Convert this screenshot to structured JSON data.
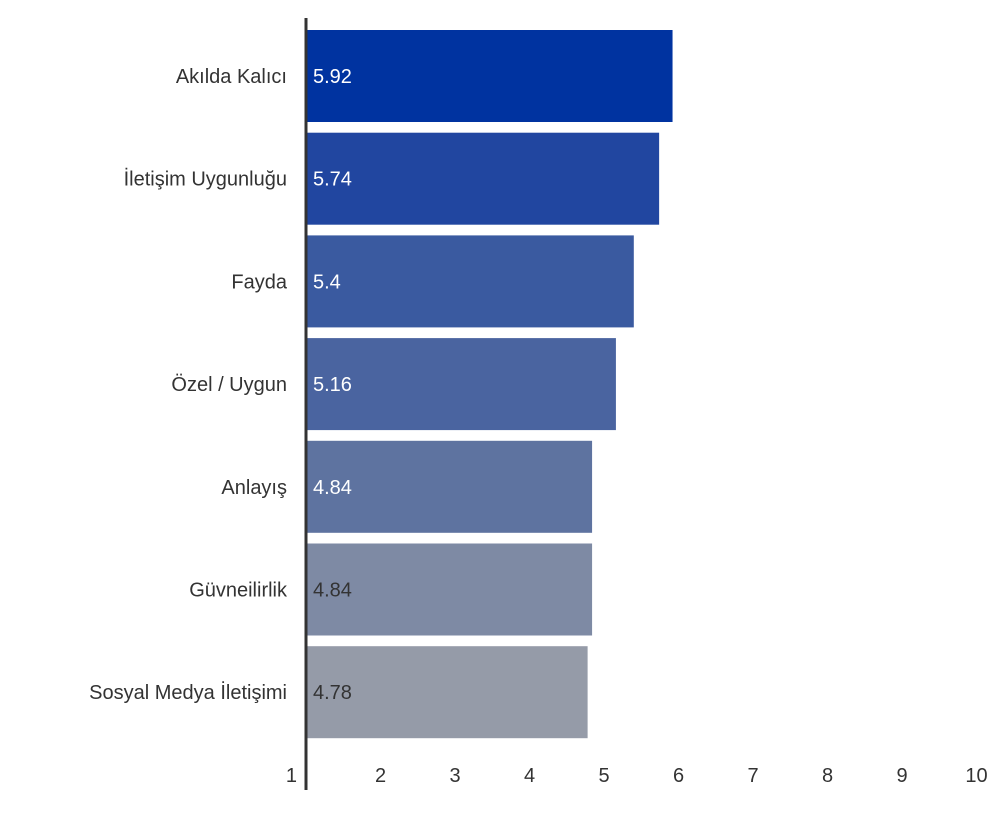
{
  "chart_data": {
    "type": "bar",
    "orientation": "horizontal",
    "title": "",
    "xlabel": "",
    "ylabel": "",
    "categories": [
      "Akılda Kalıcı",
      "İletişim Uygunluğu",
      "Fayda",
      "Özel / Uygun",
      "Anlayış",
      "Güvneilirlik",
      "Sosyal Medya İletişimi"
    ],
    "values": [
      5.92,
      5.74,
      5.4,
      5.16,
      4.84,
      4.84,
      4.78
    ],
    "value_labels": [
      "5.92",
      "5.74",
      "5.4",
      "5.16",
      "4.84",
      "4.84",
      "4.78"
    ],
    "bar_colors": [
      "#0033a0",
      "#2146a0",
      "#3a5aa0",
      "#4a64a0",
      "#5e73a0",
      "#7e8aa4",
      "#959ba8"
    ],
    "value_label_colors": [
      "#ffffff",
      "#ffffff",
      "#ffffff",
      "#ffffff",
      "#ffffff",
      "#333333",
      "#333333"
    ],
    "xlim": [
      1,
      10
    ],
    "xticks": [
      "1",
      "2",
      "3",
      "4",
      "5",
      "6",
      "7",
      "8",
      "9",
      "10"
    ],
    "grid": false,
    "legend": "none",
    "axis_color": "#333333"
  }
}
